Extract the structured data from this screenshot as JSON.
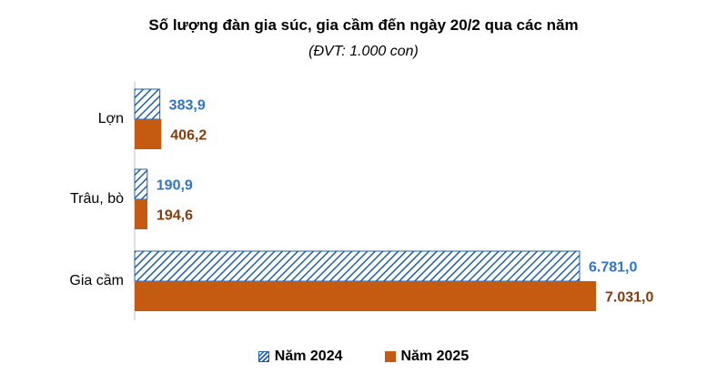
{
  "chart_data": {
    "type": "bar",
    "orientation": "horizontal",
    "title": "Số lượng đàn gia súc, gia cầm đến ngày 20/2 qua các năm",
    "subtitle": "(ĐVT: 1.000 con)",
    "categories": [
      "Lợn",
      "Trâu, bò",
      "Gia cầm"
    ],
    "series": [
      {
        "name": "Năm 2024",
        "values": [
          383.9,
          190.9,
          6781.0
        ],
        "labels": [
          "383,9",
          "190,9",
          "6.781,0"
        ],
        "color": "#1f5fa8",
        "pattern": "diagonal-hatch",
        "label_color": "#2e75c6"
      },
      {
        "name": "Năm 2025",
        "values": [
          406.2,
          194.6,
          7031.0
        ],
        "labels": [
          "406,2",
          "194,6",
          "7.031,0"
        ],
        "color": "#c55a11",
        "pattern": "solid",
        "label_color": "#843c0c"
      }
    ],
    "xlim": [
      0,
      7031
    ],
    "grid": false,
    "legend_position": "bottom"
  }
}
